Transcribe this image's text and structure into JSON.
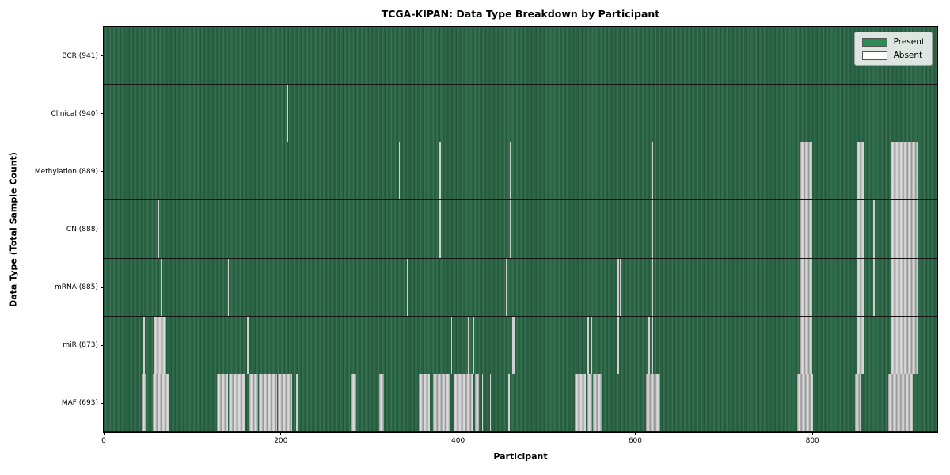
{
  "chart_data": {
    "type": "heatmap",
    "title": "TCGA-KIPAN: Data Type Breakdown by Participant",
    "xlabel": "Participant",
    "ylabel": "Data Type (Total Sample Count)",
    "xlim": [
      0,
      941
    ],
    "xticks": [
      0,
      200,
      400,
      600,
      800
    ],
    "grid": false,
    "legend": {
      "position": "upper right",
      "entries": [
        {
          "label": "Present",
          "color": "#2e8b57"
        },
        {
          "label": "Absent",
          "color": "#ffffff"
        }
      ]
    },
    "colors": {
      "present_fill": "#2e6b4a",
      "present_edge_dark": "#24563c",
      "absent_fill": "#ffffff",
      "absent_shade": "#8f8f8f",
      "row_separator": "#141414",
      "spine": "#000000",
      "background": "#ffffff"
    },
    "rows": [
      {
        "data_type": "BCR",
        "label": "BCR (941)",
        "present_count": 941,
        "absent_ranges": []
      },
      {
        "data_type": "Clinical",
        "label": "Clinical (940)",
        "present_count": 940,
        "absent_ranges": [
          [
            207,
            208
          ]
        ]
      },
      {
        "data_type": "Methylation",
        "label": "Methylation (889)",
        "present_count": 889,
        "absent_ranges": [
          [
            47,
            48
          ],
          [
            333,
            334
          ],
          [
            379,
            380
          ],
          [
            458,
            459
          ],
          [
            619,
            620
          ],
          [
            786,
            800
          ],
          [
            850,
            858
          ],
          [
            888,
            920
          ]
        ]
      },
      {
        "data_type": "CN",
        "label": "CN (888)",
        "present_count": 888,
        "absent_ranges": [
          [
            61,
            62
          ],
          [
            379,
            380
          ],
          [
            458,
            459
          ],
          [
            619,
            620
          ],
          [
            786,
            800
          ],
          [
            850,
            858
          ],
          [
            869,
            870
          ],
          [
            888,
            920
          ]
        ]
      },
      {
        "data_type": "mRNA",
        "label": "mRNA (885)",
        "present_count": 885,
        "absent_ranges": [
          [
            64,
            65
          ],
          [
            133,
            134
          ],
          [
            140,
            141
          ],
          [
            342,
            343
          ],
          [
            454,
            455
          ],
          [
            580,
            581
          ],
          [
            583,
            584
          ],
          [
            619,
            620
          ],
          [
            786,
            800
          ],
          [
            850,
            858
          ],
          [
            869,
            870
          ],
          [
            888,
            920
          ]
        ]
      },
      {
        "data_type": "miR",
        "label": "miR (873)",
        "present_count": 873,
        "absent_ranges": [
          [
            45,
            46
          ],
          [
            56,
            71
          ],
          [
            73,
            74
          ],
          [
            162,
            163
          ],
          [
            369,
            370
          ],
          [
            392,
            393
          ],
          [
            411,
            412
          ],
          [
            417,
            418
          ],
          [
            433,
            434
          ],
          [
            461,
            464
          ],
          [
            546,
            547
          ],
          [
            550,
            551
          ],
          [
            580,
            581
          ],
          [
            615,
            616
          ],
          [
            619,
            620
          ],
          [
            786,
            800
          ],
          [
            850,
            858
          ],
          [
            888,
            920
          ]
        ]
      },
      {
        "data_type": "MAF",
        "label": "MAF (693)",
        "present_count": 693,
        "absent_ranges": [
          [
            43,
            48
          ],
          [
            55,
            74
          ],
          [
            116,
            117
          ],
          [
            128,
            140
          ],
          [
            141,
            160
          ],
          [
            164,
            174
          ],
          [
            175,
            196
          ],
          [
            197,
            213
          ],
          [
            217,
            219
          ],
          [
            280,
            285
          ],
          [
            311,
            316
          ],
          [
            356,
            368
          ],
          [
            372,
            391
          ],
          [
            395,
            417
          ],
          [
            419,
            424
          ],
          [
            427,
            428
          ],
          [
            436,
            437
          ],
          [
            457,
            458
          ],
          [
            532,
            544
          ],
          [
            546,
            551
          ],
          [
            552,
            563
          ],
          [
            612,
            622
          ],
          [
            623,
            628
          ],
          [
            783,
            801
          ],
          [
            848,
            854
          ],
          [
            886,
            913
          ]
        ]
      }
    ]
  }
}
